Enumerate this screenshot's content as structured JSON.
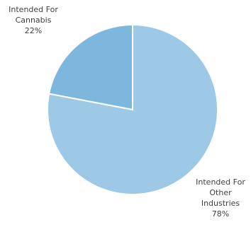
{
  "chart_data": {
    "type": "pie",
    "title": "",
    "slices": [
      {
        "name": "Intended For Cannabis",
        "label_lines": [
          "Intended For",
          "Cannabis"
        ],
        "value": 22,
        "value_label": "22%",
        "color": "#7DB7DE"
      },
      {
        "name": "Intended For Other Industries",
        "label_lines": [
          "Intended For",
          "Other",
          "Industries"
        ],
        "value": 78,
        "value_label": "78%",
        "color": "#9DC8E6"
      }
    ],
    "start_angle": "12 o'clock",
    "direction": "counterclockwise for first slice",
    "legend": "none",
    "border_color": "#FFFFFF"
  }
}
